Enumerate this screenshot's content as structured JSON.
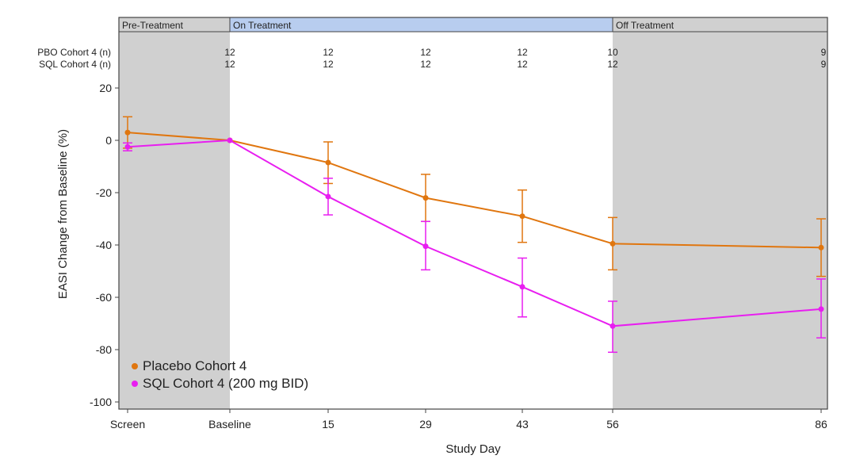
{
  "chart_data": {
    "type": "line",
    "xlabel": "Study Day",
    "ylabel": "EASI Change from Baseline (%)",
    "ylim": [
      -100,
      20
    ],
    "yticks": [
      20,
      0,
      -20,
      -40,
      -60,
      -80,
      -100
    ],
    "categories": [
      "Screen",
      "Baseline",
      "15",
      "29",
      "43",
      "56",
      "86"
    ],
    "phases": [
      {
        "label": "Pre-Treatment",
        "from": 0,
        "to": 1,
        "band_color": "#d0d0d0",
        "header_color": "#d0d0d0"
      },
      {
        "label": "On Treatment",
        "from": 1,
        "to": 5,
        "band_color": "#ffffff",
        "header_color": "#b8cdef"
      },
      {
        "label": "Off Treatment",
        "from": 5,
        "to": 6,
        "band_color": "#d0d0d0",
        "header_color": "#d0d0d0"
      }
    ],
    "n_rows": [
      {
        "label": "PBO Cohort 4 (n)",
        "values": [
          "",
          "12",
          "12",
          "12",
          "12",
          "10",
          "9"
        ]
      },
      {
        "label": "SQL Cohort 4 (n)",
        "values": [
          "",
          "12",
          "12",
          "12",
          "12",
          "12",
          "9"
        ]
      }
    ],
    "series": [
      {
        "name": "Placebo Cohort 4",
        "color": "#e0760f",
        "values": [
          3,
          0,
          -8.5,
          -22,
          -29,
          -39.5,
          -41
        ],
        "err_high": [
          9,
          0,
          -0.6,
          -13,
          -19,
          -29.5,
          -30
        ],
        "err_low": [
          -3,
          0,
          -16.5,
          -31,
          -39,
          -49.5,
          -52
        ]
      },
      {
        "name": "SQL Cohort 4 (200 mg BID)",
        "color": "#e81ef0",
        "values": [
          -2.5,
          0,
          -21.5,
          -40.5,
          -56,
          -71,
          -64.5
        ],
        "err_high": [
          -1,
          0,
          -14.5,
          -31,
          -45,
          -61.5,
          -53
        ],
        "err_low": [
          -4,
          0,
          -28.5,
          -49.5,
          -67.5,
          -81,
          -75.5
        ]
      }
    ],
    "legend_position": "bottom-left",
    "grid": false
  }
}
